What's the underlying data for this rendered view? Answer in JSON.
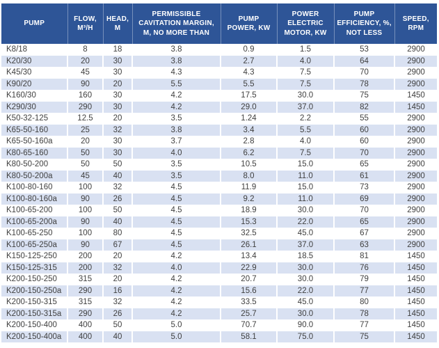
{
  "colors": {
    "header_bg": "#2E5597",
    "header_text": "#FFFFFF",
    "stripe": "#D9E1F2",
    "row_bg": "#FFFFFF",
    "data_text": "#404040"
  },
  "table": {
    "columns": [
      {
        "key": "pump",
        "label": "PUMP"
      },
      {
        "key": "flow",
        "label": "FLOW,\nM³/H"
      },
      {
        "key": "head",
        "label": "HEAD,\nM"
      },
      {
        "key": "cavitation_margin",
        "label": "PERMISSIBLE\nCAVITATION MARGIN,\nM, NO MORE THAN"
      },
      {
        "key": "pump_power",
        "label": "PUMP\nPOWER, KW"
      },
      {
        "key": "motor_power",
        "label": "POWER\nELECTRIC\nMOTOR, KW"
      },
      {
        "key": "efficiency",
        "label": "PUMP\nEFFICIENCY, %,\nNOT LESS"
      },
      {
        "key": "speed",
        "label": "SPEED,\nRPM"
      }
    ],
    "rows": [
      [
        "K8/18",
        "8",
        "18",
        "3.8",
        "0.9",
        "1.5",
        "53",
        "2900"
      ],
      [
        "K20/30",
        "20",
        "30",
        "3.8",
        "2.7",
        "4.0",
        "64",
        "2900"
      ],
      [
        "K45/30",
        "45",
        "30",
        "4.3",
        "4.3",
        "7.5",
        "70",
        "2900"
      ],
      [
        "K90/20",
        "90",
        "20",
        "5.5",
        "5.5",
        "7.5",
        "78",
        "2900"
      ],
      [
        "K160/30",
        "160",
        "30",
        "4.2",
        "17.5",
        "30.0",
        "75",
        "1450"
      ],
      [
        "K290/30",
        "290",
        "30",
        "4.2",
        "29.0",
        "37.0",
        "82",
        "1450"
      ],
      [
        "K50-32-125",
        "12.5",
        "20",
        "3.5",
        "1.24",
        "2.2",
        "55",
        "2900"
      ],
      [
        "K65-50-160",
        "25",
        "32",
        "3.8",
        "3.4",
        "5.5",
        "60",
        "2900"
      ],
      [
        "K65-50-160a",
        "20",
        "30",
        "3.7",
        "2.8",
        "4.0",
        "60",
        "2900"
      ],
      [
        "K80-65-160",
        "50",
        "30",
        "4.0",
        "6.2",
        "7.5",
        "70",
        "2900"
      ],
      [
        "K80-50-200",
        "50",
        "50",
        "3.5",
        "10.5",
        "15.0",
        "65",
        "2900"
      ],
      [
        "K80-50-200a",
        "45",
        "40",
        "3.5",
        "8.0",
        "11.0",
        "61",
        "2900"
      ],
      [
        "K100-80-160",
        "100",
        "32",
        "4.5",
        "11.9",
        "15.0",
        "73",
        "2900"
      ],
      [
        "K100-80-160a",
        "90",
        "26",
        "4.5",
        "9.2",
        "11.0",
        "69",
        "2900"
      ],
      [
        "K100-65-200",
        "100",
        "50",
        "4.5",
        "18.9",
        "30.0",
        "70",
        "2900"
      ],
      [
        "K100-65-200a",
        "90",
        "40",
        "4.5",
        "15.3",
        "22.0",
        "65",
        "2900"
      ],
      [
        "K100-65-250",
        "100",
        "80",
        "4.5",
        "32.5",
        "45.0",
        "67",
        "2900"
      ],
      [
        "K100-65-250a",
        "90",
        "67",
        "4.5",
        "26.1",
        "37.0",
        "63",
        "2900"
      ],
      [
        "K150-125-250",
        "200",
        "20",
        "4.2",
        "13.4",
        "18.5",
        "81",
        "1450"
      ],
      [
        "K150-125-315",
        "200",
        "32",
        "4.0",
        "22.9",
        "30.0",
        "76",
        "1450"
      ],
      [
        "K200-150-250",
        "315",
        "20",
        "4.2",
        "20.7",
        "30.0",
        "79",
        "1450"
      ],
      [
        "K200-150-250a",
        "290",
        "16",
        "4.2",
        "15.6",
        "22.0",
        "77",
        "1450"
      ],
      [
        "K200-150-315",
        "315",
        "32",
        "4.2",
        "33.5",
        "45.0",
        "80",
        "1450"
      ],
      [
        "K200-150-315a",
        "290",
        "26",
        "4.2",
        "25.7",
        "30.0",
        "78",
        "1450"
      ],
      [
        "K200-150-400",
        "400",
        "50",
        "5.0",
        "70.7",
        "90.0",
        "77",
        "1450"
      ],
      [
        "K200-150-400a",
        "400",
        "40",
        "5.0",
        "58.1",
        "75.0",
        "75",
        "1450"
      ]
    ]
  },
  "chart_data": {
    "type": "table",
    "title": "Pump specifications",
    "columns": [
      "PUMP",
      "FLOW, M³/H",
      "HEAD, M",
      "PERMISSIBLE CAVITATION MARGIN, M, NO MORE THAN",
      "PUMP POWER, KW",
      "POWER ELECTRIC MOTOR, KW",
      "PUMP EFFICIENCY, %, NOT LESS",
      "SPEED, RPM"
    ],
    "rows": [
      [
        "K8/18",
        8,
        18,
        3.8,
        0.9,
        1.5,
        53,
        2900
      ],
      [
        "K20/30",
        20,
        30,
        3.8,
        2.7,
        4.0,
        64,
        2900
      ],
      [
        "K45/30",
        45,
        30,
        4.3,
        4.3,
        7.5,
        70,
        2900
      ],
      [
        "K90/20",
        90,
        20,
        5.5,
        5.5,
        7.5,
        78,
        2900
      ],
      [
        "K160/30",
        160,
        30,
        4.2,
        17.5,
        30.0,
        75,
        1450
      ],
      [
        "K290/30",
        290,
        30,
        4.2,
        29.0,
        37.0,
        82,
        1450
      ],
      [
        "K50-32-125",
        12.5,
        20,
        3.5,
        1.24,
        2.2,
        55,
        2900
      ],
      [
        "K65-50-160",
        25,
        32,
        3.8,
        3.4,
        5.5,
        60,
        2900
      ],
      [
        "K65-50-160a",
        20,
        30,
        3.7,
        2.8,
        4.0,
        60,
        2900
      ],
      [
        "K80-65-160",
        50,
        30,
        4.0,
        6.2,
        7.5,
        70,
        2900
      ],
      [
        "K80-50-200",
        50,
        50,
        3.5,
        10.5,
        15.0,
        65,
        2900
      ],
      [
        "K80-50-200a",
        45,
        40,
        3.5,
        8.0,
        11.0,
        61,
        2900
      ],
      [
        "K100-80-160",
        100,
        32,
        4.5,
        11.9,
        15.0,
        73,
        2900
      ],
      [
        "K100-80-160a",
        90,
        26,
        4.5,
        9.2,
        11.0,
        69,
        2900
      ],
      [
        "K100-65-200",
        100,
        50,
        4.5,
        18.9,
        30.0,
        70,
        2900
      ],
      [
        "K100-65-200a",
        90,
        40,
        4.5,
        15.3,
        22.0,
        65,
        2900
      ],
      [
        "K100-65-250",
        100,
        80,
        4.5,
        32.5,
        45.0,
        67,
        2900
      ],
      [
        "K100-65-250a",
        90,
        67,
        4.5,
        26.1,
        37.0,
        63,
        2900
      ],
      [
        "K150-125-250",
        200,
        20,
        4.2,
        13.4,
        18.5,
        81,
        1450
      ],
      [
        "K150-125-315",
        200,
        32,
        4.0,
        22.9,
        30.0,
        76,
        1450
      ],
      [
        "K200-150-250",
        315,
        20,
        4.2,
        20.7,
        30.0,
        79,
        1450
      ],
      [
        "K200-150-250a",
        290,
        16,
        4.2,
        15.6,
        22.0,
        77,
        1450
      ],
      [
        "K200-150-315",
        315,
        32,
        4.2,
        33.5,
        45.0,
        80,
        1450
      ],
      [
        "K200-150-315a",
        290,
        26,
        4.2,
        25.7,
        30.0,
        78,
        1450
      ],
      [
        "K200-150-400",
        400,
        50,
        5.0,
        70.7,
        90.0,
        77,
        1450
      ],
      [
        "K200-150-400a",
        400,
        40,
        5.0,
        58.1,
        75.0,
        75,
        1450
      ]
    ]
  }
}
